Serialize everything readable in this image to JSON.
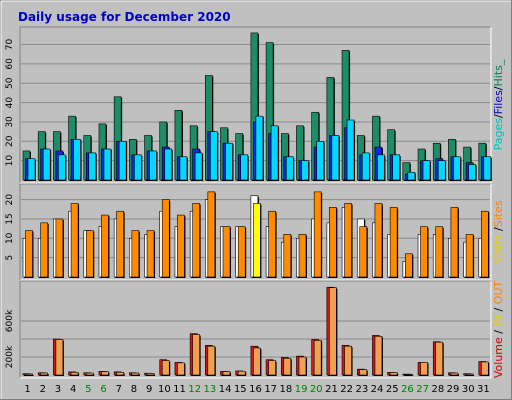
{
  "chart_data": [
    {
      "type": "bar",
      "title": "Daily usage for December 2020",
      "ylim": [
        0,
        77
      ],
      "yticks": [
        10,
        20,
        30,
        40,
        50,
        60,
        70
      ],
      "categories": [
        "1",
        "2",
        "3",
        "4",
        "5",
        "6",
        "7",
        "8",
        "9",
        "10",
        "11",
        "12",
        "13",
        "14",
        "15",
        "16",
        "17",
        "18",
        "19",
        "20",
        "21",
        "22",
        "23",
        "24",
        "25",
        "26",
        "27",
        "28",
        "29",
        "30",
        "31"
      ],
      "weekend_days": [
        "5",
        "6",
        "12",
        "13",
        "19",
        "20",
        "26",
        "27"
      ],
      "right_label_parts": [
        {
          "text": "Pages",
          "color": "#00c0c0"
        },
        {
          "text": "/",
          "color": "#000000"
        },
        {
          "text": "Files",
          "color": "#0000c0"
        },
        {
          "text": "/",
          "color": "#000000"
        },
        {
          "text": "Hits_",
          "color": "#00805a"
        }
      ],
      "series": [
        {
          "name": "Hits",
          "color": "#1e8c68",
          "values": [
            15,
            25,
            25,
            33,
            23,
            29,
            43,
            21,
            23,
            30,
            36,
            28,
            54,
            27,
            24,
            76,
            71,
            24,
            28,
            35,
            53,
            67,
            23,
            33,
            26,
            9,
            16,
            19,
            21,
            17,
            19
          ]
        },
        {
          "name": "Files",
          "color": "#1428e0",
          "values": [
            11,
            16,
            15,
            21,
            14,
            16,
            20,
            13,
            15,
            17,
            12,
            16,
            25,
            19,
            13,
            30,
            24,
            12,
            10,
            17,
            23,
            27,
            13,
            17,
            13,
            3,
            10,
            11,
            12,
            9,
            12
          ]
        },
        {
          "name": "Pages",
          "color": "#00d8ff",
          "values": [
            11,
            16,
            13,
            21,
            14,
            16,
            20,
            13,
            15,
            16,
            12,
            14,
            25,
            19,
            13,
            33,
            28,
            12,
            10,
            20,
            23,
            31,
            14,
            13,
            13,
            4,
            10,
            10,
            12,
            8,
            12
          ]
        }
      ]
    },
    {
      "type": "bar",
      "ylim": [
        0,
        23
      ],
      "yticks": [
        5,
        10,
        15,
        20
      ],
      "right_label_parts": [
        {
          "text": "Visits",
          "color": "#e0d000"
        },
        {
          "text": " /",
          "color": "#000000"
        },
        {
          "text": "Sites",
          "color": "#ff8000"
        }
      ],
      "series": [
        {
          "name": "Visits",
          "color": "#ffffff",
          "values": [
            10,
            10,
            15,
            17,
            12,
            13,
            15,
            10,
            11,
            17,
            13,
            17,
            20,
            13,
            13,
            21,
            13,
            9,
            10,
            15,
            14,
            18,
            15,
            14,
            11,
            4,
            11,
            11,
            10,
            9,
            10
          ]
        },
        {
          "name": "Sites",
          "color": "#ff8c00",
          "highlight": {
            "day": "16",
            "color": "#ffff00"
          },
          "values": [
            12,
            14,
            15,
            19,
            12,
            16,
            17,
            12,
            12,
            20,
            16,
            19,
            22,
            13,
            13,
            19,
            17,
            11,
            11,
            22,
            18,
            19,
            13,
            19,
            18,
            6,
            13,
            13,
            18,
            11,
            17
          ]
        }
      ]
    },
    {
      "type": "bar",
      "ylim": [
        0,
        1000
      ],
      "yticks": [
        200,
        400,
        600
      ],
      "yticklabels": [
        "200k",
        "",
        "600k"
      ],
      "right_label_parts": [
        {
          "text": "Volume",
          "color": "#d00000"
        },
        {
          "text": " / ",
          "color": "#000000"
        },
        {
          "text": "IN",
          "color": "#e0d000"
        },
        {
          "text": " / ",
          "color": "#000000"
        },
        {
          "text": "OUT",
          "color": "#ff8000"
        },
        {
          "text": " ",
          "color": "#000000"
        }
      ],
      "series": [
        {
          "name": "Volume",
          "color": "#d01818",
          "values": [
            15,
            25,
            400,
            35,
            25,
            40,
            35,
            25,
            20,
            170,
            140,
            460,
            330,
            40,
            45,
            320,
            170,
            195,
            210,
            395,
            975,
            330,
            65,
            440,
            30,
            10,
            140,
            370,
            25,
            15,
            150
          ]
        },
        {
          "name": "OUT",
          "color": "#f0a050",
          "values": [
            12,
            22,
            395,
            30,
            22,
            38,
            30,
            22,
            18,
            160,
            135,
            450,
            320,
            38,
            42,
            300,
            160,
            185,
            200,
            385,
            970,
            320,
            60,
            430,
            28,
            8,
            140,
            365,
            22,
            12,
            145
          ]
        }
      ]
    }
  ]
}
